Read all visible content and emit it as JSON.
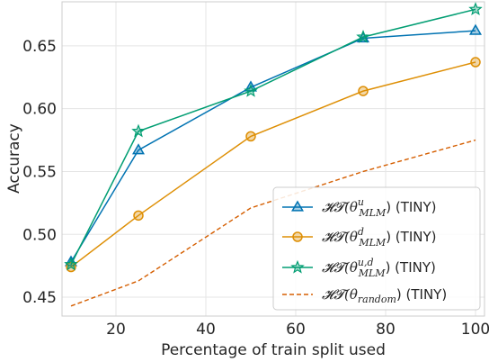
{
  "chart_data": {
    "type": "line",
    "xlabel": "Percentage of train split used",
    "ylabel": "Accuracy",
    "xlim": [
      8,
      102
    ],
    "ylim": [
      0.435,
      0.685
    ],
    "xticks": [
      20,
      40,
      60,
      80,
      100
    ],
    "yticks": [
      0.45,
      0.5,
      0.55,
      0.6,
      0.65
    ],
    "ytick_labels": [
      "0.45",
      "0.50",
      "0.55",
      "0.60",
      "0.65"
    ],
    "grid": true,
    "legend_position": "lower-right",
    "x": [
      10,
      25,
      50,
      75,
      100
    ],
    "series": [
      {
        "name": "HT(θ^u_MLM) (TINY)",
        "label_parts": {
          "pre": "𝓗𝓣(θ",
          "sup": "u",
          "sub": "MLM",
          "post": ") (TINY)"
        },
        "values": [
          0.478,
          0.567,
          0.617,
          0.656,
          0.662
        ],
        "color": "#0173b2",
        "marker": "triangle",
        "dashed": false
      },
      {
        "name": "HT(θ^d_MLM) (TINY)",
        "label_parts": {
          "pre": "𝓗𝓣(θ",
          "sup": "d",
          "sub": "MLM",
          "post": ") (TINY)"
        },
        "values": [
          0.474,
          0.515,
          0.578,
          0.614,
          0.637
        ],
        "color": "#de8f05",
        "marker": "circle",
        "dashed": false
      },
      {
        "name": "HT(θ^u,d_MLM) (TINY)",
        "label_parts": {
          "pre": "𝓗𝓣(θ",
          "sup": "u,d",
          "sub": "MLM",
          "post": ") (TINY)"
        },
        "values": [
          0.476,
          0.582,
          0.614,
          0.657,
          0.679
        ],
        "color": "#029e73",
        "marker": "star",
        "dashed": false
      },
      {
        "name": "HT(θ_random) (TINY)",
        "label_parts": {
          "pre": "𝓗𝓣(θ",
          "sup": "",
          "sub": "random",
          "post": ") (TINY)"
        },
        "values": [
          0.443,
          0.463,
          0.521,
          0.55,
          0.575
        ],
        "color": "#d55e00",
        "marker": "none",
        "dashed": true
      }
    ]
  }
}
